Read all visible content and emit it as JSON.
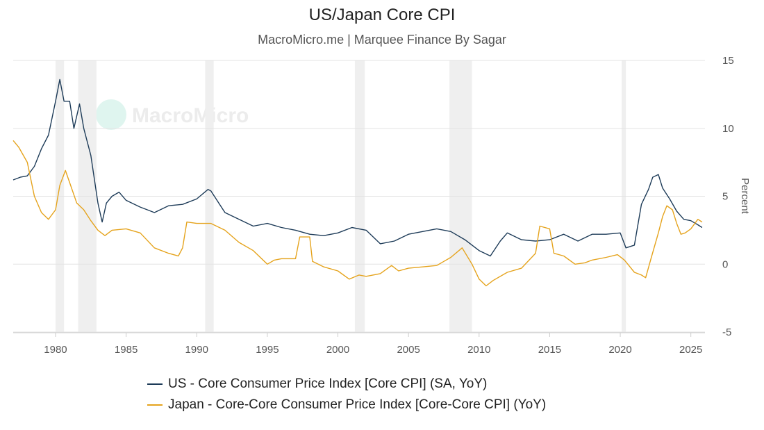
{
  "chart_data": {
    "type": "line",
    "title": "US/Japan Core CPI",
    "subtitle": "MacroMicro.me | Marquee Finance By Sagar",
    "watermark": "MacroMicro",
    "ylabel": "Percent",
    "xlabel": "",
    "xlim": [
      1977,
      2026
    ],
    "ylim": [
      -5,
      15
    ],
    "y_ticks": [
      -5,
      0,
      5,
      10,
      15
    ],
    "x_ticks": [
      1980,
      1985,
      1990,
      1995,
      2000,
      2005,
      2010,
      2015,
      2020,
      2025
    ],
    "y_axis_side": "right",
    "grid": true,
    "legend_position": "bottom",
    "recession_shading": [
      [
        1980.0,
        1980.6
      ],
      [
        1981.6,
        1982.9
      ],
      [
        1990.6,
        1991.2
      ],
      [
        2001.2,
        2001.9
      ],
      [
        2007.9,
        2009.5
      ],
      [
        2020.1,
        2020.4
      ]
    ],
    "series": [
      {
        "name": "US - Core Consumer Price Index [Core CPI] (SA, YoY)",
        "color": "#1d3b58",
        "x": [
          1977.0,
          1977.5,
          1978.0,
          1978.5,
          1979.0,
          1979.5,
          1980.0,
          1980.3,
          1980.6,
          1981.0,
          1981.3,
          1981.7,
          1982.0,
          1982.5,
          1983.0,
          1983.3,
          1983.6,
          1984.0,
          1984.5,
          1985.0,
          1986.0,
          1986.5,
          1987.0,
          1988.0,
          1989.0,
          1990.0,
          1990.8,
          1991.0,
          1992.0,
          1993.0,
          1994.0,
          1995.0,
          1996.0,
          1997.0,
          1998.0,
          1999.0,
          2000.0,
          2001.0,
          2002.0,
          2003.0,
          2004.0,
          2005.0,
          2006.0,
          2007.0,
          2008.0,
          2009.0,
          2010.0,
          2010.8,
          2011.5,
          2012.0,
          2013.0,
          2014.0,
          2015.0,
          2016.0,
          2017.0,
          2018.0,
          2019.0,
          2020.0,
          2020.4,
          2021.0,
          2021.5,
          2022.0,
          2022.3,
          2022.7,
          2023.0,
          2023.5,
          2024.0,
          2024.5,
          2025.0,
          2025.5,
          2025.8
        ],
        "y": [
          6.2,
          6.4,
          6.5,
          7.2,
          8.5,
          9.5,
          12.0,
          13.6,
          12.0,
          12.0,
          10.0,
          11.8,
          10.0,
          8.0,
          4.5,
          3.1,
          4.5,
          5.0,
          5.3,
          4.7,
          4.2,
          4.0,
          3.8,
          4.3,
          4.4,
          4.8,
          5.5,
          5.4,
          3.8,
          3.3,
          2.8,
          3.0,
          2.7,
          2.5,
          2.2,
          2.1,
          2.3,
          2.7,
          2.5,
          1.5,
          1.7,
          2.2,
          2.4,
          2.6,
          2.4,
          1.8,
          1.0,
          0.6,
          1.7,
          2.3,
          1.8,
          1.7,
          1.8,
          2.2,
          1.7,
          2.2,
          2.2,
          2.3,
          1.2,
          1.4,
          4.4,
          5.5,
          6.4,
          6.6,
          5.6,
          4.8,
          3.9,
          3.3,
          3.2,
          2.9,
          2.7
        ]
      },
      {
        "name": "Japan - Core-Core Consumer Price Index [Core-Core CPI] (YoY)",
        "color": "#e5a31c",
        "x": [
          1977.0,
          1977.4,
          1978.0,
          1978.5,
          1979.0,
          1979.5,
          1980.0,
          1980.3,
          1980.7,
          1981.0,
          1981.5,
          1982.0,
          1982.5,
          1983.0,
          1983.5,
          1984.0,
          1985.0,
          1986.0,
          1987.0,
          1988.0,
          1988.7,
          1989.0,
          1989.3,
          1990.0,
          1991.0,
          1992.0,
          1993.0,
          1994.0,
          1995.0,
          1995.5,
          1996.0,
          1997.0,
          1997.3,
          1998.0,
          1998.2,
          1999.0,
          2000.0,
          2000.8,
          2001.5,
          2002.0,
          2003.0,
          2003.8,
          2004.3,
          2005.0,
          2006.0,
          2007.0,
          2008.0,
          2008.8,
          2009.5,
          2010.0,
          2010.5,
          2011.0,
          2012.0,
          2013.0,
          2014.0,
          2014.3,
          2015.0,
          2015.3,
          2016.0,
          2016.8,
          2017.5,
          2018.0,
          2019.0,
          2019.8,
          2020.3,
          2021.0,
          2021.5,
          2021.8,
          2022.2,
          2022.7,
          2023.0,
          2023.3,
          2023.7,
          2024.0,
          2024.3,
          2024.6,
          2025.0,
          2025.5,
          2025.8
        ],
        "y": [
          9.1,
          8.6,
          7.5,
          5.0,
          3.8,
          3.3,
          4.0,
          5.8,
          6.9,
          6.0,
          4.5,
          4.0,
          3.2,
          2.5,
          2.1,
          2.5,
          2.6,
          2.3,
          1.2,
          0.8,
          0.6,
          1.2,
          3.1,
          3.0,
          3.0,
          2.5,
          1.6,
          1.0,
          0.0,
          0.3,
          0.4,
          0.4,
          2.0,
          2.0,
          0.2,
          -0.2,
          -0.5,
          -1.1,
          -0.8,
          -0.9,
          -0.7,
          -0.1,
          -0.5,
          -0.3,
          -0.2,
          -0.1,
          0.5,
          1.2,
          0.0,
          -1.1,
          -1.6,
          -1.2,
          -0.6,
          -0.3,
          0.8,
          2.8,
          2.6,
          0.8,
          0.6,
          0.0,
          0.1,
          0.3,
          0.5,
          0.7,
          0.3,
          -0.6,
          -0.8,
          -1.0,
          0.5,
          2.3,
          3.5,
          4.3,
          4.0,
          3.0,
          2.2,
          2.3,
          2.6,
          3.3,
          3.1
        ]
      }
    ]
  }
}
